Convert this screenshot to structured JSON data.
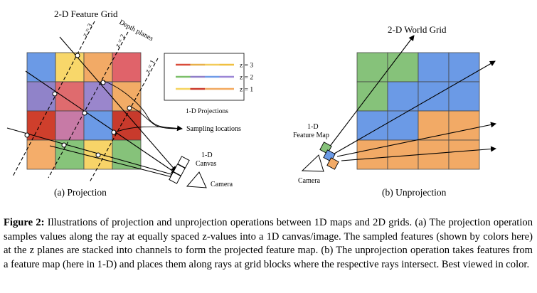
{
  "figure": {
    "left_panel": {
      "title": "2-D Feature Grid",
      "depth_planes_label": "Depth planes",
      "plane_labels": [
        "z = 3",
        "z = 2",
        "z = 1"
      ],
      "legend_rows": [
        {
          "label": "z = 3",
          "colors": [
            "#d94c3a",
            "#e8b04a",
            "#f3cc5a",
            "#f0c040"
          ]
        },
        {
          "label": "z = 2",
          "colors": [
            "#7cbf6a",
            "#8f7ec8",
            "#6f9be8",
            "#9b86d6"
          ]
        },
        {
          "label": "z = 1",
          "colors": [
            "#f6d35e",
            "#cc3a2a",
            "#f0a860",
            "#f3a85c"
          ]
        }
      ],
      "legend_caption": "1-D Projections",
      "sampling_label": "Sampling locations",
      "canvas_label_line1": "1-D",
      "canvas_label_line2": "Canvas",
      "camera_label": "Camera",
      "panel_label": "(a) Projection",
      "grid_colors": [
        [
          "#6b9ae6",
          "#f8d76a",
          "#f2aa66",
          "#e0636a"
        ],
        [
          "#9083c9",
          "#df6b6e",
          "#9a86cc",
          "#f2ac66"
        ],
        [
          "#cf3f2c",
          "#c77aa6",
          "#6b9ae6",
          "#c83a2c"
        ],
        [
          "#f4ad6a",
          "#87c47a",
          "#f7d468",
          "#86c27a"
        ]
      ]
    },
    "right_panel": {
      "title": "2-D World Grid",
      "feature_map_line1": "1-D",
      "feature_map_line2": "Feature Map",
      "feature_map_colors": [
        "#86c27a",
        "#6b9ae6",
        "#f2aa66"
      ],
      "camera_label": "Camera",
      "panel_label": "(b) Unprojection",
      "grid_colors": [
        [
          "#86c27a",
          "#86c27a",
          "#6b9ae6",
          "#6b9ae6"
        ],
        [
          "#86c27a",
          "#6b9ae6",
          "#6b9ae6",
          "#6b9ae6"
        ],
        [
          "#6b9ae6",
          "#6b9ae6",
          "#f2aa66",
          "#f2aa66"
        ],
        [
          "#f2aa66",
          "#f2aa66",
          "#f2aa66",
          "#f2aa66"
        ]
      ]
    }
  },
  "caption": {
    "prefix": "Figure 2:",
    "text": " Illustrations of projection and unprojection operations between 1D maps and 2D grids. (a) The projection operation samples values along the ray at equally spaced z-values into a 1D canvas/image. The sampled features (shown by colors here) at the z planes are stacked into channels to form the projected feature map. (b) The unprojection operation takes features from a feature map (here in 1-D) and places them along rays at grid blocks where the respective rays intersect. Best viewed in color."
  }
}
